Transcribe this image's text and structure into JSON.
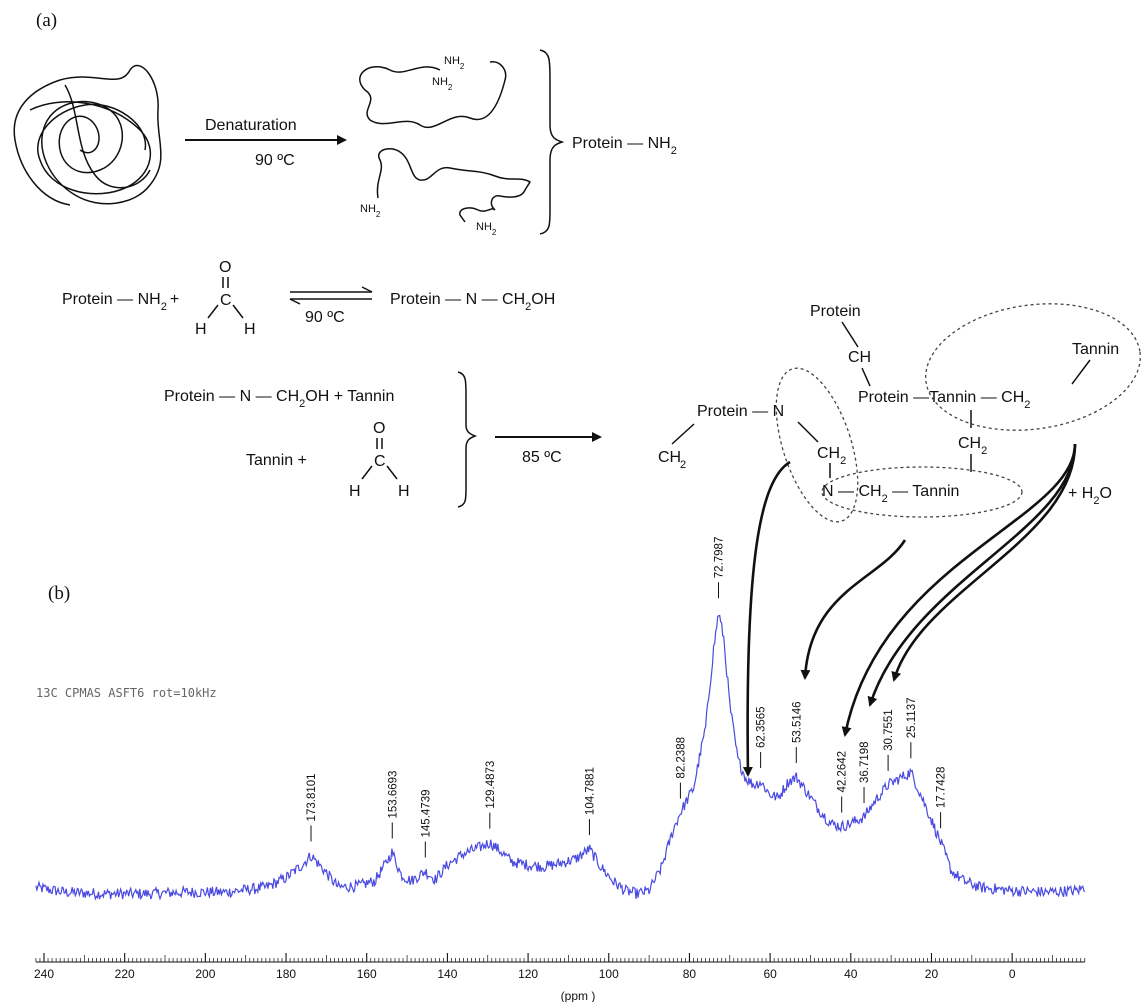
{
  "panels": {
    "a": "(a)",
    "b": "(b)"
  },
  "scheme": {
    "denaturation": "Denaturation",
    "temp_denat": "90 ºC",
    "nh2": "NH",
    "nh2_sub": "2",
    "protein_nh2": "Protein — NH",
    "protein_nh2_plus": "Protein — NH",
    "plus": "+",
    "O": "O",
    "C": "C",
    "H": "H",
    "temp_eq": "90 ºC",
    "product1": "Protein — N — CH",
    "product1_sub": "2",
    "product1_tail": "OH",
    "reactant_line1": "Protein — N — CH",
    "reactant_line1_tail": "OH  +   Tannin",
    "tannin_plus": "Tannin    +",
    "temp_cure": "85 ºC",
    "network": {
      "protein": "Protein",
      "ch": "CH",
      "tannin": "Tannin",
      "protein_n": "Protein — N",
      "protein_tannin": "Protein —Tannin — CH",
      "ch2": "CH",
      "n_ch2_tannin": "N — CH",
      "n_tail": " — Tannin",
      "plus_water": "+   H",
      "water_tail": "O"
    }
  },
  "chart_data": {
    "type": "line",
    "title": "13C CPMAS ASFT6 rot=10kHz",
    "xlabel": "(ppm )",
    "ylabel": "",
    "xlim": [
      -18,
      242
    ],
    "x_reversed": true,
    "xticks": [
      240,
      220,
      200,
      180,
      160,
      140,
      120,
      100,
      80,
      60,
      40,
      20,
      0
    ],
    "grid": false,
    "peak_labels": [
      173.8101,
      153.6693,
      145.4739,
      129.4873,
      104.7881,
      82.2388,
      72.7987,
      62.3565,
      53.5146,
      42.2642,
      36.7198,
      30.7551,
      25.1137,
      17.7428
    ],
    "series": [
      {
        "color": "#4a4ae0",
        "x": [
          242,
          235,
          225,
          215,
          205,
          195,
          185,
          180,
          176,
          173.8,
          171,
          167,
          162,
          158,
          155.5,
          153.7,
          151.5,
          149,
          145.5,
          143,
          140,
          136,
          132,
          129.5,
          127,
          124,
          120,
          116,
          112,
          108,
          104.8,
          102,
          99,
          96,
          93,
          90,
          87,
          84,
          82.2,
          79,
          76,
          74,
          72.8,
          71.5,
          70,
          68,
          66,
          64,
          62.4,
          60,
          58,
          55.5,
          53.5,
          51,
          48,
          45,
          42.3,
          40,
          36.7,
          34,
          30.8,
          28,
          25.1,
          23,
          20,
          17.7,
          15,
          12,
          8,
          0,
          -8,
          -16,
          -18
        ],
        "y": [
          6,
          3,
          2,
          2,
          3,
          3,
          6,
          12,
          20,
          26,
          18,
          6,
          7,
          10,
          20,
          28,
          14,
          10,
          16,
          11,
          20,
          27,
          31,
          34,
          29,
          22,
          20,
          19,
          21,
          24,
          30,
          19,
          10,
          4,
          2,
          4,
          18,
          42,
          53,
          68,
          106,
          155,
          178,
          162,
          120,
          86,
          74,
          70,
          72,
          64,
          62,
          72,
          75,
          66,
          55,
          46,
          44,
          46,
          50,
          60,
          70,
          74,
          78,
          66,
          48,
          34,
          16,
          10,
          6,
          4,
          3,
          4,
          6
        ]
      }
    ]
  }
}
